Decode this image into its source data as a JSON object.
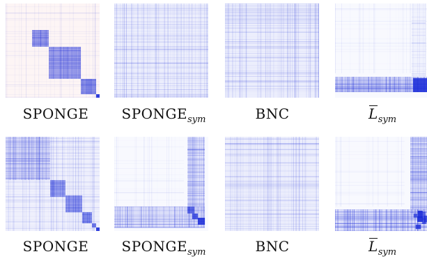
{
  "figure": {
    "rows": [
      {
        "panels": [
          {
            "caption": "SPONGE",
            "sub": "",
            "overline": false,
            "pattern": "sponge-a"
          },
          {
            "caption": "SPONGE",
            "sub": "sym",
            "overline": false,
            "pattern": "uniform"
          },
          {
            "caption": "BNC",
            "sub": "",
            "overline": false,
            "pattern": "uniform"
          },
          {
            "caption": "L",
            "sub": "sym",
            "overline": true,
            "pattern": "lsym-a"
          }
        ]
      },
      {
        "panels": [
          {
            "caption": "SPONGE",
            "sub": "",
            "overline": false,
            "pattern": "sponge-b"
          },
          {
            "caption": "SPONGE",
            "sub": "sym",
            "overline": false,
            "pattern": "spongesym-b"
          },
          {
            "caption": "BNC",
            "sub": "",
            "overline": false,
            "pattern": "uniform"
          },
          {
            "caption": "L",
            "sub": "sym",
            "overline": true,
            "pattern": "lsym-b"
          }
        ]
      }
    ],
    "colors": {
      "blue": "#1a2bd8",
      "light_blue": "#c9cdf5",
      "red_tint": "#f2c9c9",
      "background": "#ffffff"
    }
  }
}
